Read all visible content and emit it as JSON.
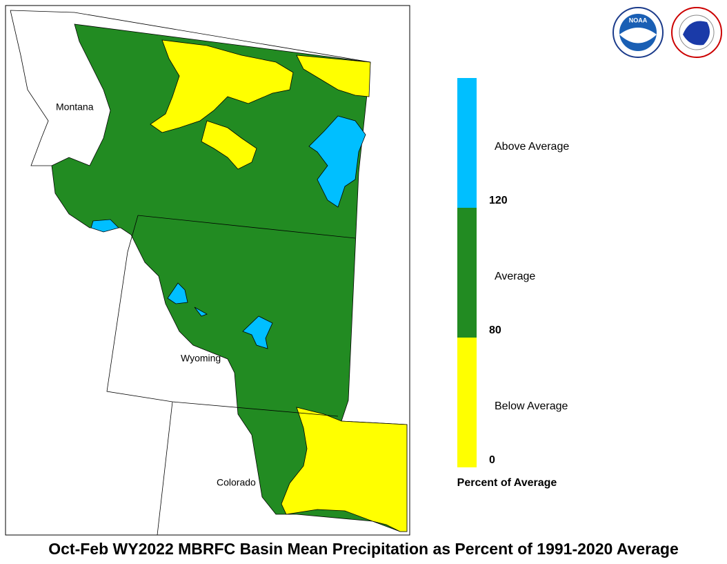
{
  "map": {
    "title": "Oct-Feb WY2022 MBRFC Basin Mean Precipitation as Percent of 1991-2020 Average",
    "states": [
      "Montana",
      "Wyoming",
      "Colorado"
    ],
    "logos": [
      "NOAA"
    ],
    "legend": {
      "title": "Percent of Average",
      "classes": [
        {
          "label": "Below Average",
          "color": "#ffff00"
        },
        {
          "label": "Average",
          "color": "#228b22"
        },
        {
          "label": "Above Average",
          "color": "#00bfff"
        }
      ],
      "ticks": [
        0,
        80,
        120
      ]
    }
  }
}
